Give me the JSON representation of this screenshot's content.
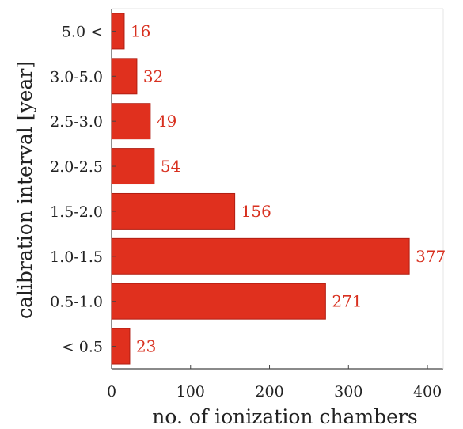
{
  "chart_data": {
    "type": "bar",
    "orientation": "horizontal",
    "categories": [
      "5.0 <",
      "3.0-5.0",
      "2.5-3.0",
      "2.0-2.5",
      "1.5-2.0",
      "1.0-1.5",
      "0.5-1.0",
      "< 0.5"
    ],
    "values": [
      16,
      32,
      49,
      54,
      156,
      377,
      271,
      23
    ],
    "xlabel": "no. of ionization chambers",
    "ylabel": "calibration interval [year]",
    "xlim": [
      0,
      420
    ],
    "xticks": [
      0,
      100,
      200,
      300,
      400
    ],
    "grid": false,
    "data_labels": true,
    "colors": {
      "bar": "#e0301e",
      "bar_edge": "#b01e12",
      "label": "#d8301f"
    }
  }
}
